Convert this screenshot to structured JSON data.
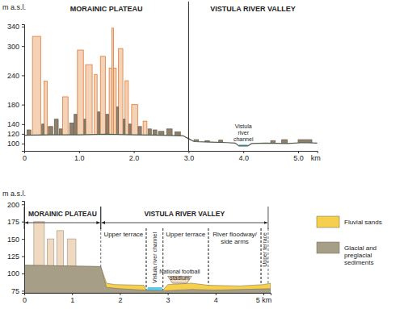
{
  "chart_data": [
    {
      "type": "area",
      "y_label": "m a.s.l.",
      "x_label": "km",
      "regions": [
        {
          "label": "MORAINIC PLATEAU",
          "x0": 0,
          "x1": 3.0
        },
        {
          "label": "VISTULA RIVER VALLEY",
          "x0": 3.0,
          "x1": 5.35
        }
      ],
      "xlim": [
        0,
        5.35
      ],
      "xticks": [
        0,
        {
          "value": 1,
          "label": "1.0"
        },
        {
          "value": 2,
          "label": "2.0"
        },
        {
          "value": 3,
          "label": "3.0"
        },
        {
          "value": 4,
          "label": "4.0"
        },
        {
          "value": 5,
          "label": "5.0"
        }
      ],
      "ylim": [
        85,
        345
      ],
      "yticks": [
        100,
        120,
        140,
        180,
        240,
        300,
        340
      ],
      "series": [
        {
          "type": "bar",
          "color": "#f4d2b6",
          "x0": [
            0.15,
            0.36,
            0.7,
            0.97,
            1.12,
            1.28,
            1.39,
            1.55,
            1.6,
            1.72,
            1.84,
            1.96,
            2.17
          ],
          "x1": [
            0.3,
            0.42,
            0.8,
            1.08,
            1.24,
            1.33,
            1.48,
            1.68,
            1.63,
            1.8,
            1.9,
            2.07,
            2.24
          ],
          "values": [
            320,
            228,
            196,
            292,
            262,
            242,
            279,
            255,
            337,
            295,
            229,
            180,
            146
          ]
        },
        {
          "type": "bar",
          "color": "#8f806c",
          "x0": [
            0.05,
            0.32,
            0.44,
            0.55,
            0.64,
            0.83,
            0.91,
            1.09,
            1.34,
            1.49,
            1.69,
            1.81,
            1.91,
            2.08,
            2.26,
            2.35,
            2.45,
            2.6,
            2.75,
            3.1,
            3.3,
            3.55,
            4.5,
            4.7,
            5.0
          ],
          "x1": [
            0.12,
            0.36,
            0.52,
            0.62,
            0.69,
            0.9,
            0.96,
            1.12,
            1.38,
            1.54,
            1.72,
            1.84,
            1.95,
            2.14,
            2.32,
            2.42,
            2.55,
            2.7,
            2.85,
            3.18,
            3.38,
            3.62,
            4.58,
            4.8,
            5.25
          ],
          "values": [
            128,
            140,
            135,
            150,
            130,
            142,
            160,
            150,
            165,
            160,
            175,
            150,
            140,
            135,
            130,
            128,
            125,
            130,
            124,
            108,
            106,
            107,
            106,
            108,
            108
          ]
        },
        {
          "type": "line",
          "color": "#4d5a4a",
          "x": [
            0,
            0.5,
            1.0,
            1.5,
            2.0,
            2.5,
            2.9,
            3.0,
            3.1,
            3.4,
            3.7,
            3.85,
            3.92,
            4.08,
            4.15,
            4.4,
            4.8,
            5.1,
            5.35
          ],
          "values": [
            117,
            118,
            118,
            119,
            118,
            117,
            116,
            110,
            104,
            103,
            102,
            101,
            95,
            95,
            100,
            101,
            100,
            102,
            101
          ]
        }
      ],
      "river": {
        "color": "#5ec9e8",
        "x": [
          3.92,
          4.08
        ],
        "level": 98
      },
      "annotations": [
        {
          "text": "Vistula river channel",
          "x": 4.0,
          "y": 132
        }
      ]
    },
    {
      "type": "area",
      "y_label": "m a.s.l.",
      "regions": [
        {
          "label": "MORAINIC PLATEAU",
          "x0": 0,
          "x1": 1.6
        },
        {
          "label": "VISTULA RIVER VALLEY",
          "x0": 1.6,
          "x1": 5.1
        }
      ],
      "zones": [
        {
          "label": "Upper terrace",
          "x0": 1.6,
          "x1": 2.55
        },
        {
          "label": "Vistula river channel",
          "x0": 2.55,
          "x1": 2.9
        },
        {
          "label": "Upper terrace",
          "x0": 2.9,
          "x1": 3.85
        },
        {
          "label": "River floodway/ side arms",
          "x0": 3.85,
          "x1": 4.95
        },
        {
          "label": "Upper terrace",
          "x0": 4.95,
          "x1": 5.1
        }
      ],
      "xlim": [
        0,
        5.15
      ],
      "xticks": [
        0,
        1,
        2,
        3,
        4,
        {
          "value": 5,
          "label": "5 km"
        }
      ],
      "ylim": [
        72,
        205
      ],
      "yticks": [
        75,
        100,
        125,
        150,
        175,
        200
      ],
      "series": [
        {
          "type": "bar",
          "color": "#efd9c0",
          "x0": [
            0.2,
            0.48,
            0.68,
            0.9
          ],
          "x1": [
            0.42,
            0.62,
            0.82,
            1.08
          ],
          "values": [
            175,
            150,
            162,
            150
          ]
        },
        {
          "name": "Fluvial sands",
          "type": "area",
          "color": "#f6d04d",
          "x": [
            0,
            1.6,
            1.72,
            1.9,
            2.5,
            2.55,
            2.9,
            3.0,
            3.5,
            3.85,
            4.5,
            5.0,
            5.15
          ],
          "values": [
            112,
            110,
            86,
            84,
            83,
            76,
            76,
            84,
            86,
            83,
            82,
            84,
            86
          ]
        },
        {
          "name": "Glacial and preglacial sediments",
          "type": "area",
          "color": "#a79e87",
          "x": [
            0,
            1.6,
            1.72,
            2.0,
            2.5,
            2.9,
            3.5,
            4.0,
            5.15
          ],
          "values": [
            112,
            110,
            80,
            78,
            76,
            75,
            77,
            76,
            78
          ]
        }
      ],
      "river": {
        "color": "#5ec9e8",
        "x": [
          2.58,
          2.88
        ],
        "level": 80
      },
      "structures": [
        {
          "x0": 3.0,
          "x1": 3.5,
          "base": 86,
          "top": 96
        }
      ],
      "annotations": [
        {
          "text": "National football stadium",
          "x": 3.25,
          "y": 100
        }
      ],
      "legend": "right"
    }
  ]
}
